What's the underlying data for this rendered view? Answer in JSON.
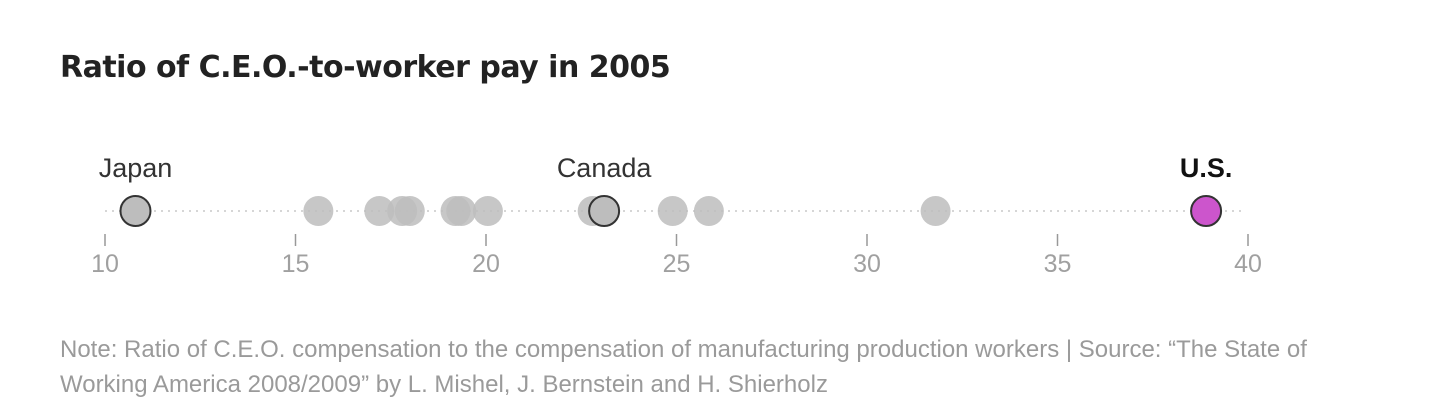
{
  "chart_data": {
    "type": "scatter",
    "title": "Ratio of C.E.O.-to-worker pay in 2005",
    "xlabel": "",
    "ylabel": "",
    "xlim": [
      10,
      40
    ],
    "xticks": [
      10,
      15,
      20,
      25,
      30,
      35,
      40
    ],
    "grid": false,
    "colors": {
      "point": "#bdbdbd",
      "highlight": "#cc55cc",
      "outline": "#333333",
      "axis": "#999999",
      "label": "#333333"
    },
    "points": [
      {
        "x": 10.8,
        "label": "Japan",
        "style": "outlined"
      },
      {
        "x": 15.6,
        "label": "",
        "style": "plain"
      },
      {
        "x": 17.2,
        "label": "",
        "style": "plain"
      },
      {
        "x": 17.8,
        "label": "",
        "style": "plain"
      },
      {
        "x": 18.0,
        "label": "",
        "style": "plain"
      },
      {
        "x": 19.2,
        "label": "",
        "style": "plain"
      },
      {
        "x": 19.35,
        "label": "",
        "style": "plain"
      },
      {
        "x": 20.05,
        "label": "",
        "style": "plain"
      },
      {
        "x": 22.8,
        "label": "",
        "style": "plain"
      },
      {
        "x": 23.1,
        "label": "Canada",
        "style": "outlined"
      },
      {
        "x": 24.9,
        "label": "",
        "style": "plain"
      },
      {
        "x": 25.85,
        "label": "",
        "style": "plain"
      },
      {
        "x": 31.8,
        "label": "",
        "style": "plain"
      },
      {
        "x": 38.9,
        "label": "U.S.",
        "style": "highlight"
      }
    ]
  },
  "note": "Note: Ratio of C.E.O. compensation to the compensation of manufacturing production workers | Source: “The State of Working America 2008/2009” by L. Mishel, J. Bernstein and H. Shierholz"
}
